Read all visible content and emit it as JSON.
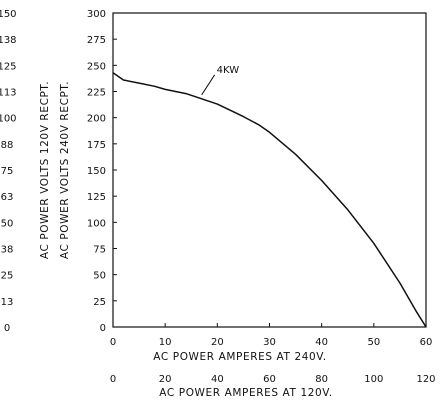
{
  "chart_data": {
    "type": "line",
    "title": "",
    "series": [
      {
        "name": "",
        "x": [
          0,
          2,
          5,
          8,
          10,
          14,
          17,
          20,
          25,
          28,
          30,
          35,
          40,
          45,
          50,
          55,
          58,
          60
        ],
        "y": [
          243,
          236,
          233,
          230,
          227,
          223,
          218,
          213,
          201,
          193,
          186,
          165,
          140,
          112,
          80,
          42,
          16,
          0
        ]
      }
    ],
    "annotation": {
      "text": "4KW",
      "x": 17,
      "y": 218
    },
    "x_axis_primary": {
      "label": "AC POWER AMPERES AT 240V.",
      "ticks": [
        "0",
        "10",
        "20",
        "30",
        "40",
        "50",
        "60"
      ],
      "range": [
        0,
        60
      ]
    },
    "x_axis_secondary": {
      "label": "AC POWER AMPERES AT 120V.",
      "ticks": [
        "0",
        "20",
        "40",
        "60",
        "80",
        "100",
        "120"
      ],
      "range": [
        0,
        120
      ]
    },
    "y_axis_primary": {
      "label": "AC POWER VOLTS 240V RECPT.",
      "ticks": [
        "0",
        "25",
        "50",
        "75",
        "100",
        "125",
        "150",
        "175",
        "200",
        "225",
        "250",
        "275",
        "300"
      ],
      "range": [
        0,
        300
      ]
    },
    "y_axis_secondary": {
      "label": "AC POWER VOLTS 120V RECPT.",
      "ticks": [
        "0",
        "13",
        "25",
        "38",
        "50",
        "63",
        "75",
        "88",
        "100",
        "113",
        "125",
        "138",
        "150"
      ],
      "range": [
        0,
        150
      ]
    },
    "grid": false,
    "colors": {
      "line": "#111111",
      "background": "#ffffff"
    }
  }
}
